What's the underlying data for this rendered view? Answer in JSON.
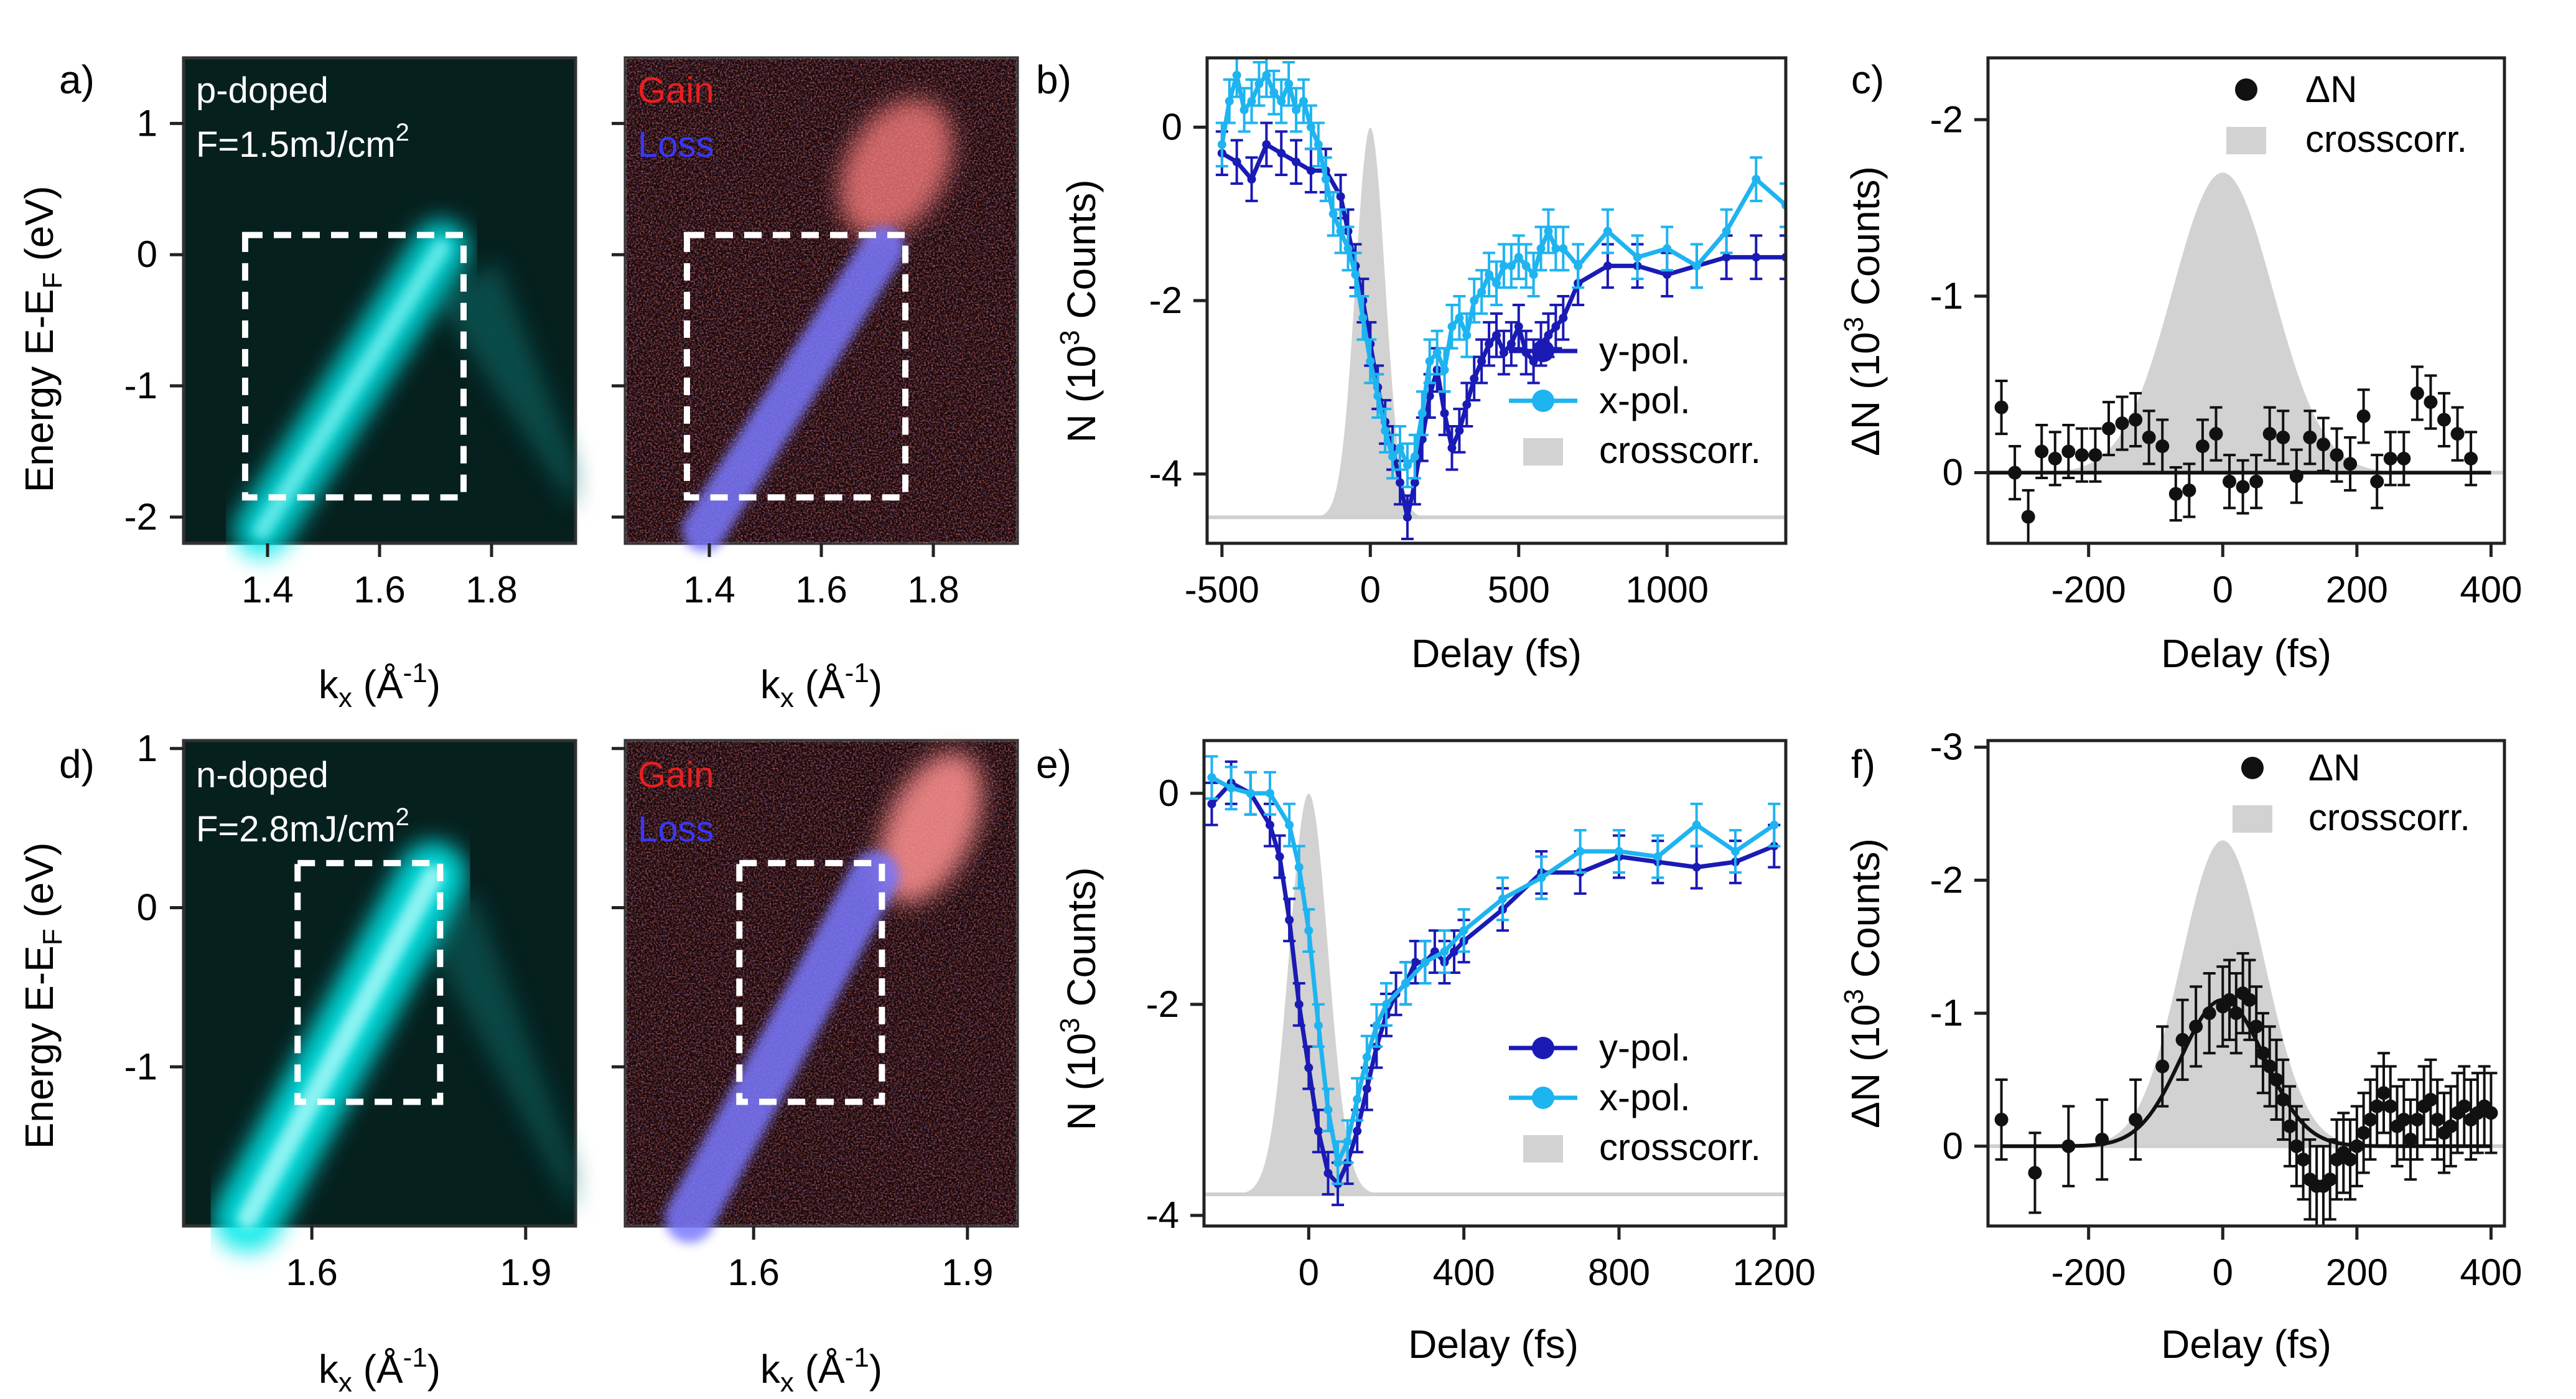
{
  "colors": {
    "cyan": "#00e8e8",
    "ydark": "#1a1ab4",
    "xlight": "#1eb4f0",
    "gray": "#d2d2d2",
    "black": "#111111",
    "gain": "#e82020",
    "loss": "#3838ff"
  },
  "chart_data": [
    {
      "panel": "a",
      "type": "heatmap",
      "label": "a)",
      "annotations": [
        "p-doped",
        "F=1.5mJ/cm",
        "2"
      ],
      "xlabel": "k",
      "xlabel_sub": "x",
      "xlabel_unit": " (Å",
      "xlabel_exp": "-1",
      "xlabel_close": ")",
      "ylabel": "Energy E-E",
      "ylabel_sub": "F",
      "ylabel_unit": " (eV)",
      "xlim": [
        1.25,
        1.95
      ],
      "ylim": [
        -2.2,
        1.5
      ],
      "xticks": [
        1.4,
        1.6,
        1.8
      ],
      "xtick_labels": [
        "1.4",
        "1.6",
        "1.8"
      ],
      "yticks": [
        -2,
        -1,
        0,
        1
      ],
      "ytick_labels": [
        "-2",
        "-1",
        "0",
        "1"
      ],
      "box": {
        "k": [
          1.36,
          1.75
        ],
        "E": [
          -1.85,
          0.15
        ]
      },
      "band": [
        [
          1.39,
          -2.1
        ],
        [
          1.71,
          0.05
        ]
      ]
    },
    {
      "panel": "a2",
      "type": "heatmap",
      "legend": [
        "Gain",
        "Loss"
      ],
      "xlabel": "k",
      "xlabel_sub": "x",
      "xlabel_unit": " (Å",
      "xlabel_exp": "-1",
      "xlabel_close": ")",
      "xlim": [
        1.25,
        1.95
      ],
      "ylim": [
        -2.2,
        1.5
      ],
      "xticks": [
        1.4,
        1.6,
        1.8
      ],
      "xtick_labels": [
        "1.4",
        "1.6",
        "1.8"
      ],
      "yticks": [
        -2,
        -1,
        0,
        1
      ],
      "box": {
        "k": [
          1.36,
          1.75
        ],
        "E": [
          -1.85,
          0.15
        ]
      },
      "band": [
        [
          1.39,
          -2.1
        ],
        [
          1.71,
          0.05
        ]
      ]
    },
    {
      "panel": "b",
      "type": "line",
      "label": "b)",
      "xlabel": "Delay (fs)",
      "ylabel": "N",
      "ylabel_unit": "(10",
      "ylabel_exp": "3",
      "ylabel_close": " Counts)",
      "xlim": [
        -550,
        1400
      ],
      "ylim": [
        -4.8,
        0.8
      ],
      "xticks": [
        -500,
        0,
        500,
        1000
      ],
      "xtick_labels": [
        "-500",
        "0",
        "500",
        "1000"
      ],
      "yticks": [
        0,
        -2,
        -4
      ],
      "ytick_labels": [
        "0",
        "-2",
        "-4"
      ],
      "legend": [
        "y-pol.",
        "x-pol.",
        "crosscorr."
      ],
      "series": [
        {
          "name": "y-pol.",
          "x": [
            -500,
            -450,
            -400,
            -350,
            -300,
            -250,
            -200,
            -150,
            -100,
            -75,
            -50,
            -25,
            0,
            25,
            50,
            75,
            100,
            125,
            150,
            175,
            200,
            225,
            250,
            275,
            300,
            325,
            350,
            375,
            400,
            425,
            450,
            475,
            500,
            525,
            550,
            575,
            600,
            625,
            650,
            700,
            800,
            900,
            1000,
            1100,
            1200,
            1300,
            1400
          ],
          "y": [
            -0.3,
            -0.4,
            -0.6,
            -0.2,
            -0.3,
            -0.4,
            -0.5,
            -0.5,
            -0.8,
            -1.2,
            -1.6,
            -2.0,
            -2.5,
            -3.0,
            -3.4,
            -3.7,
            -4.1,
            -4.5,
            -4.1,
            -3.6,
            -3.1,
            -2.8,
            -3.3,
            -3.7,
            -3.5,
            -3.2,
            -2.9,
            -2.7,
            -2.5,
            -2.4,
            -2.6,
            -2.5,
            -2.3,
            -2.6,
            -2.7,
            -2.5,
            -2.4,
            -2.3,
            -2.2,
            -1.8,
            -1.6,
            -1.6,
            -1.7,
            -1.6,
            -1.5,
            -1.5,
            -1.5
          ],
          "err": 0.25
        },
        {
          "name": "x-pol.",
          "x": [
            -500,
            -475,
            -450,
            -425,
            -400,
            -375,
            -350,
            -325,
            -300,
            -275,
            -250,
            -225,
            -200,
            -175,
            -150,
            -125,
            -100,
            -75,
            -50,
            -25,
            0,
            25,
            50,
            75,
            100,
            125,
            150,
            175,
            200,
            225,
            250,
            275,
            300,
            325,
            350,
            375,
            400,
            425,
            450,
            475,
            500,
            525,
            550,
            575,
            600,
            625,
            650,
            700,
            800,
            900,
            1000,
            1100,
            1200,
            1300,
            1400
          ],
          "y": [
            -0.2,
            0.3,
            0.6,
            0.2,
            0.3,
            0.5,
            0.6,
            0.4,
            0.3,
            0.5,
            0.2,
            0.3,
            0.0,
            -0.2,
            -0.6,
            -1.0,
            -1.2,
            -1.4,
            -1.7,
            -2.2,
            -2.7,
            -3.1,
            -3.5,
            -3.8,
            -3.7,
            -3.9,
            -3.8,
            -3.3,
            -2.7,
            -2.6,
            -2.8,
            -2.3,
            -2.2,
            -2.4,
            -2.0,
            -1.9,
            -1.7,
            -1.8,
            -1.6,
            -1.6,
            -1.5,
            -1.6,
            -1.7,
            -1.4,
            -1.2,
            -1.4,
            -1.4,
            -1.6,
            -1.2,
            -1.5,
            -1.4,
            -1.6,
            -1.2,
            -0.6,
            -0.9
          ],
          "err": 0.25
        },
        {
          "name": "crosscorr.",
          "center": 0,
          "sigma": 50,
          "base": -4.5,
          "height": 4.5
        }
      ]
    },
    {
      "panel": "c",
      "type": "scatter",
      "label": "c)",
      "xlabel": "Delay (fs)",
      "ylabel": "ΔN",
      "ylabel_unit": "(10",
      "ylabel_exp": "3",
      "ylabel_close": " Counts)",
      "xlim": [
        -350,
        420
      ],
      "ylim": [
        0.4,
        -2.35
      ],
      "xticks": [
        -200,
        0,
        200,
        400
      ],
      "xtick_labels": [
        "-200",
        "0",
        "200",
        "400"
      ],
      "yticks": [
        -2,
        -1,
        0
      ],
      "ytick_labels": [
        "-2",
        "-1",
        "0"
      ],
      "legend": [
        "ΔN",
        "crosscorr."
      ],
      "series": [
        {
          "name": "ΔN",
          "x": [
            -330,
            -310,
            -290,
            -270,
            -250,
            -230,
            -210,
            -190,
            -170,
            -150,
            -130,
            -110,
            -90,
            -70,
            -50,
            -30,
            -10,
            10,
            30,
            50,
            70,
            90,
            110,
            130,
            150,
            170,
            190,
            210,
            230,
            250,
            270,
            290,
            310,
            330,
            350,
            370
          ],
          "y": [
            -0.37,
            0.0,
            0.25,
            -0.12,
            -0.08,
            -0.12,
            -0.1,
            -0.1,
            -0.25,
            -0.28,
            -0.3,
            -0.2,
            -0.15,
            0.12,
            0.1,
            -0.15,
            -0.22,
            0.05,
            0.08,
            0.05,
            -0.22,
            -0.2,
            0.02,
            -0.2,
            -0.16,
            -0.1,
            -0.05,
            -0.32,
            0.05,
            -0.08,
            -0.08,
            -0.45,
            -0.4,
            -0.3,
            -0.22,
            -0.08
          ],
          "err": 0.15
        },
        {
          "name": "fit",
          "x": [
            -350,
            400
          ],
          "y": [
            0,
            0
          ]
        },
        {
          "name": "crosscorr.",
          "center": 0,
          "sigma": 75,
          "base": 0,
          "height": -1.7
        }
      ]
    },
    {
      "panel": "d",
      "type": "heatmap",
      "label": "d)",
      "annotations": [
        "n-doped",
        "F=2.8mJ/cm",
        "2"
      ],
      "xlabel": "k",
      "xlabel_sub": "x",
      "xlabel_unit": " (Å",
      "xlabel_exp": "-1",
      "xlabel_close": ")",
      "ylabel": "Energy E-E",
      "ylabel_sub": "F",
      "ylabel_unit": " (eV)",
      "xlim": [
        1.42,
        1.97
      ],
      "ylim": [
        -2.0,
        1.05
      ],
      "xticks": [
        1.6,
        1.9
      ],
      "xtick_labels": [
        "1.6",
        "1.9"
      ],
      "yticks": [
        -1,
        0,
        1
      ],
      "ytick_labels": [
        "-1",
        "0",
        "1"
      ],
      "box": {
        "k": [
          1.58,
          1.78
        ],
        "E": [
          -1.22,
          0.28
        ]
      },
      "band": [
        [
          1.51,
          -1.95
        ],
        [
          1.77,
          0.2
        ]
      ]
    },
    {
      "panel": "d2",
      "type": "heatmap",
      "legend": [
        "Gain",
        "Loss"
      ],
      "xlabel": "k",
      "xlabel_sub": "x",
      "xlabel_unit": " (Å",
      "xlabel_exp": "-1",
      "xlabel_close": ")",
      "xlim": [
        1.42,
        1.97
      ],
      "ylim": [
        -2.0,
        1.05
      ],
      "xticks": [
        1.6,
        1.9
      ],
      "xtick_labels": [
        "1.6",
        "1.9"
      ],
      "yticks": [
        -1,
        0,
        1
      ],
      "box": {
        "k": [
          1.58,
          1.78
        ],
        "E": [
          -1.22,
          0.28
        ]
      },
      "band": [
        [
          1.51,
          -1.95
        ],
        [
          1.77,
          0.2
        ]
      ]
    },
    {
      "panel": "e",
      "type": "line",
      "label": "e)",
      "xlabel": "Delay (fs)",
      "ylabel": "N",
      "ylabel_unit": "(10",
      "ylabel_exp": "3",
      "ylabel_close": " Counts)",
      "xlim": [
        -270,
        1230
      ],
      "ylim": [
        -4.1,
        0.5
      ],
      "xticks": [
        0,
        400,
        800,
        1200
      ],
      "xtick_labels": [
        "0",
        "400",
        "800",
        "1200"
      ],
      "yticks": [
        0,
        -2,
        -4
      ],
      "ytick_labels": [
        "0",
        "-2",
        "-4"
      ],
      "legend": [
        "y-pol.",
        "x-pol.",
        "crosscorr."
      ],
      "series": [
        {
          "name": "y-pol.",
          "x": [
            -250,
            -200,
            -150,
            -100,
            -75,
            -50,
            -25,
            0,
            25,
            50,
            75,
            100,
            125,
            150,
            175,
            200,
            225,
            250,
            275,
            300,
            325,
            350,
            375,
            400,
            500,
            600,
            700,
            800,
            900,
            1000,
            1100,
            1200
          ],
          "y": [
            -0.1,
            0.1,
            0.0,
            -0.3,
            -0.6,
            -1.2,
            -2.0,
            -2.6,
            -3.2,
            -3.6,
            -3.7,
            -3.5,
            -3.2,
            -2.8,
            -2.4,
            -2.1,
            -1.9,
            -1.8,
            -1.6,
            -1.6,
            -1.5,
            -1.6,
            -1.5,
            -1.4,
            -1.1,
            -0.75,
            -0.75,
            -0.6,
            -0.65,
            -0.7,
            -0.65,
            -0.5
          ],
          "err": 0.2
        },
        {
          "name": "x-pol.",
          "x": [
            -250,
            -200,
            -150,
            -100,
            -50,
            -25,
            0,
            25,
            50,
            75,
            100,
            125,
            150,
            175,
            200,
            250,
            300,
            350,
            400,
            500,
            600,
            700,
            800,
            900,
            1000,
            1100,
            1200
          ],
          "y": [
            0.15,
            0.05,
            0.0,
            0.0,
            -0.3,
            -0.7,
            -1.3,
            -2.2,
            -3.0,
            -3.5,
            -3.3,
            -2.9,
            -2.5,
            -2.2,
            -2.0,
            -1.8,
            -1.6,
            -1.5,
            -1.3,
            -1.0,
            -0.8,
            -0.55,
            -0.55,
            -0.6,
            -0.3,
            -0.55,
            -0.3
          ],
          "err": 0.2
        },
        {
          "name": "crosscorr.",
          "center": 0,
          "sigma": 50,
          "base": -3.8,
          "height": 3.8
        }
      ]
    },
    {
      "panel": "f",
      "type": "scatter",
      "label": "f)",
      "xlabel": "Delay (fs)",
      "ylabel": "ΔN",
      "ylabel_unit": "(10",
      "ylabel_exp": "3",
      "ylabel_close": " Counts)",
      "xlim": [
        -350,
        420
      ],
      "ylim": [
        0.6,
        -3.05
      ],
      "xticks": [
        -200,
        0,
        200,
        400
      ],
      "xtick_labels": [
        "-200",
        "0",
        "200",
        "400"
      ],
      "yticks": [
        -3,
        -2,
        -1,
        0
      ],
      "ytick_labels": [
        "-3",
        "-2",
        "-1",
        "0"
      ],
      "legend": [
        "ΔN",
        "crosscorr."
      ],
      "series": [
        {
          "name": "ΔN",
          "x": [
            -330,
            -280,
            -230,
            -180,
            -130,
            -90,
            -60,
            -40,
            -20,
            0,
            10,
            20,
            30,
            40,
            50,
            60,
            70,
            80,
            90,
            100,
            110,
            120,
            130,
            140,
            150,
            160,
            170,
            180,
            190,
            200,
            210,
            220,
            230,
            240,
            250,
            260,
            270,
            280,
            290,
            300,
            310,
            320,
            330,
            340,
            350,
            360,
            370,
            380,
            390,
            400
          ],
          "y": [
            -0.2,
            0.2,
            0.0,
            -0.05,
            -0.2,
            -0.6,
            -0.8,
            -0.9,
            -1.0,
            -1.05,
            -1.1,
            -1.0,
            -1.15,
            -1.1,
            -0.9,
            -0.7,
            -0.6,
            -0.5,
            -0.35,
            -0.15,
            0.0,
            0.1,
            0.25,
            0.3,
            0.3,
            0.25,
            0.1,
            0.05,
            0.1,
            0.0,
            -0.1,
            -0.2,
            -0.3,
            -0.4,
            -0.3,
            -0.15,
            -0.2,
            -0.05,
            -0.2,
            -0.3,
            -0.35,
            -0.2,
            -0.1,
            -0.15,
            -0.25,
            -0.3,
            -0.2,
            -0.25,
            -0.3,
            -0.25
          ],
          "err": 0.3
        },
        {
          "name": "fit",
          "gauss_center": 0,
          "gauss_sigma": 62,
          "gauss_height": -1.1
        },
        {
          "name": "crosscorr.",
          "center": 0,
          "sigma": 62,
          "base": 0,
          "height": -2.3
        }
      ]
    }
  ]
}
